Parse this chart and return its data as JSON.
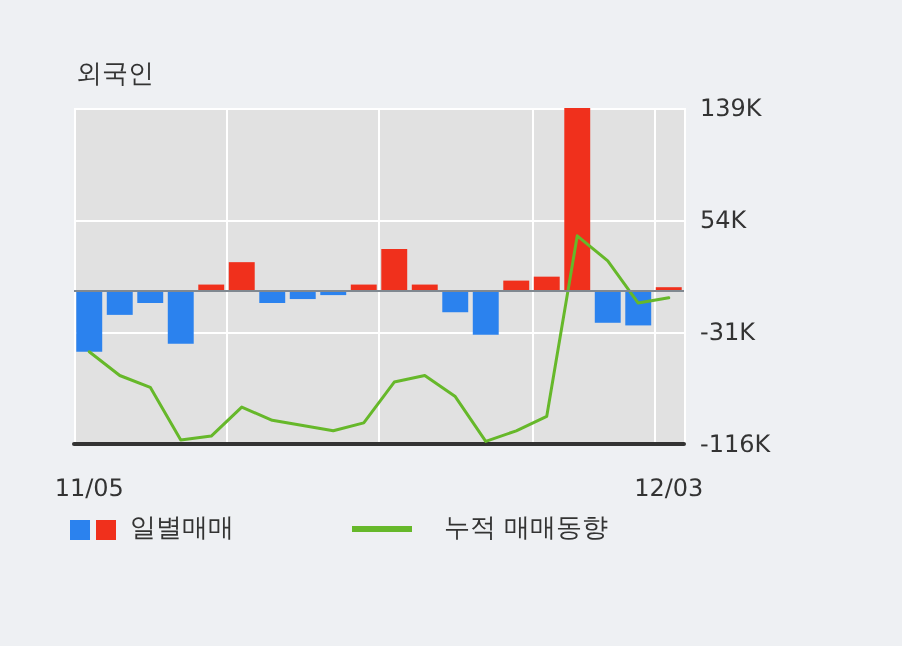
{
  "chart_data": {
    "type": "bar",
    "title": "외국인",
    "categories": [
      "11/05",
      null,
      null,
      null,
      null,
      null,
      null,
      null,
      null,
      null,
      null,
      null,
      null,
      null,
      null,
      null,
      null,
      null,
      null,
      "12/03"
    ],
    "series": [
      {
        "name": "일별매매",
        "values": [
          -46,
          -18,
          -9,
          -40,
          5,
          22,
          -9,
          -6,
          -3,
          5,
          32,
          5,
          -16,
          -33,
          8,
          11,
          139,
          -24,
          -26,
          3
        ],
        "colors": [
          "#2b82ee",
          "#2b82ee",
          "#2b82ee",
          "#2b82ee",
          "#f0301c",
          "#f0301c",
          "#2b82ee",
          "#2b82ee",
          "#2b82ee",
          "#f0301c",
          "#f0301c",
          "#f0301c",
          "#2b82ee",
          "#2b82ee",
          "#f0301c",
          "#f0301c",
          "#f0301c",
          "#2b82ee",
          "#2b82ee",
          "#f0301c"
        ]
      },
      {
        "name": "누적 매매동향",
        "type": "line",
        "color": "#66b82a",
        "values": [
          -46,
          -64,
          -73,
          -113,
          -110,
          -88,
          -98,
          -102,
          -106,
          -100,
          -69,
          -64,
          -80,
          -114,
          -106,
          -95,
          42,
          23,
          -9,
          -5
        ]
      }
    ],
    "ylim": [
      -116,
      139
    ],
    "yticks": [
      {
        "value": 139,
        "label": "139K"
      },
      {
        "value": 54,
        "label": "54K"
      },
      {
        "value": -31,
        "label": "-31K"
      },
      {
        "value": -116,
        "label": "-116K"
      }
    ],
    "ref_lines": [
      {
        "axis": "y",
        "value": 0,
        "color": "#808890"
      }
    ],
    "grid": true,
    "legend": "bottom left",
    "marker": "none",
    "line_style": "solid"
  }
}
